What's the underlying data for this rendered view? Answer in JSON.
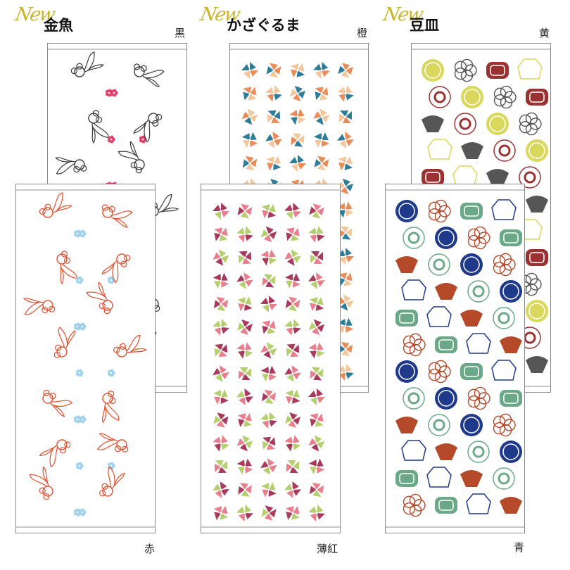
{
  "products": [
    {
      "badge": "New",
      "name": "金魚",
      "back": {
        "color": "黒",
        "motif": "goldfish",
        "colors": [
          "#3a3a3a",
          "#e2406a"
        ]
      },
      "front": {
        "color": "赤",
        "motif": "goldfish",
        "colors": [
          "#e0502e",
          "#9fd2ef"
        ]
      }
    },
    {
      "badge": "New",
      "name": "かざぐるま",
      "back": {
        "color": "橙",
        "motif": "pinwheel",
        "colors": [
          "#2e7d98",
          "#e88c5a",
          "#f3c79d"
        ]
      },
      "front": {
        "color": "薄紅",
        "motif": "pinwheel",
        "colors": [
          "#a83a5c",
          "#e87f8c",
          "#b5cf6e"
        ]
      }
    },
    {
      "badge": "New",
      "name": "豆皿",
      "back": {
        "color": "黄",
        "motif": "dish",
        "colors": [
          "#d9d85c",
          "#565656",
          "#9b3232"
        ]
      },
      "front": {
        "color": "青",
        "motif": "dish",
        "colors": [
          "#1f3a8a",
          "#b44a2a",
          "#6aa888"
        ]
      }
    }
  ]
}
